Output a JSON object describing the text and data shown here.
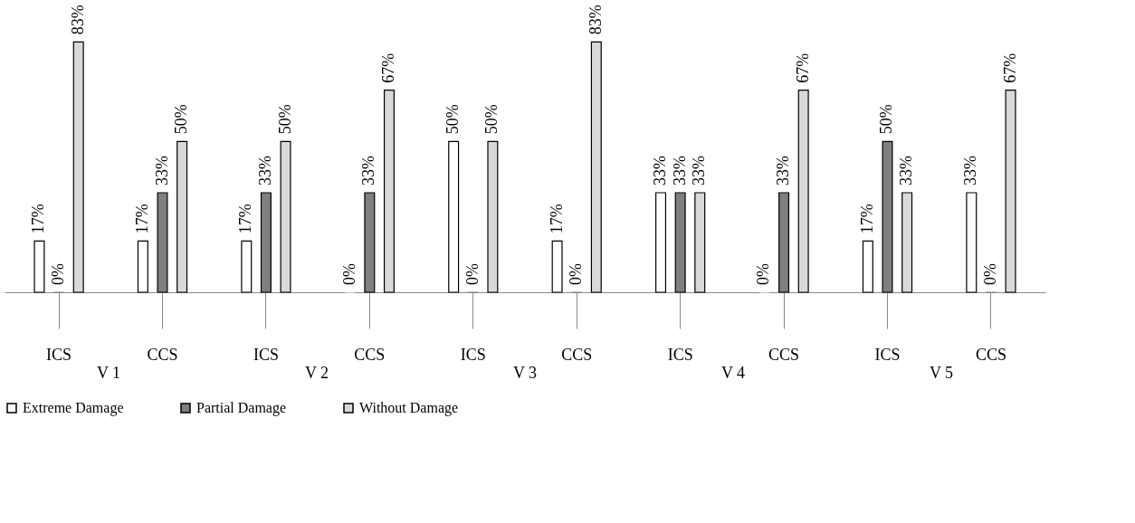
{
  "chart_data": {
    "type": "bar",
    "categories": [
      "ICS",
      "CCS",
      "ICS",
      "CCS",
      "ICS",
      "CCS",
      "ICS",
      "CCS",
      "ICS",
      "CCS"
    ],
    "series": [
      {
        "name": "Extreme Damage",
        "color": "#ffffff",
        "values": [
          17,
          17,
          17,
          0,
          50,
          17,
          33,
          0,
          17,
          33
        ],
        "value_labels": [
          "17%",
          "17%",
          "17%",
          "0%",
          "50%",
          "17%",
          "33%",
          "0%",
          "17%",
          "33%"
        ]
      },
      {
        "name": "Partial Damage",
        "color": "#7f7f7f",
        "values": [
          0,
          33,
          33,
          33,
          0,
          0,
          33,
          33,
          50,
          0
        ],
        "value_labels": [
          "0%",
          "33%",
          "33%",
          "33%",
          "0%",
          "0%",
          "33%",
          "33%",
          "50%",
          "0%"
        ]
      },
      {
        "name": "Without Damage",
        "color": "#d9d9d9",
        "values": [
          83,
          50,
          50,
          67,
          50,
          83,
          33,
          67,
          33,
          67
        ],
        "value_labels": [
          "83%",
          "50%",
          "50%",
          "67%",
          "50%",
          "83%",
          "33%",
          "67%",
          "33%",
          "67%"
        ]
      }
    ],
    "annotations": [
      "V 1",
      "V 2",
      "V 3",
      "V 4",
      "V 5"
    ],
    "legend": "bottom",
    "grid": false
  }
}
